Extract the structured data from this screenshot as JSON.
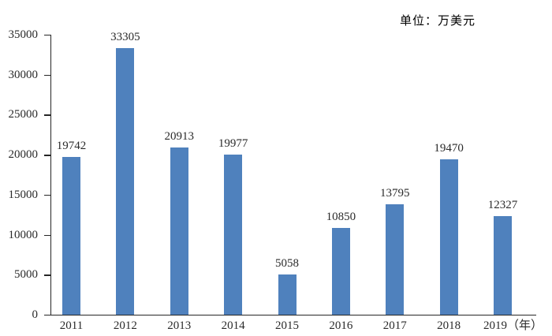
{
  "chart_data": {
    "type": "bar",
    "title": "",
    "unit_label": "单位：万美元",
    "categories": [
      "2011",
      "2012",
      "2013",
      "2014",
      "2015",
      "2016",
      "2017",
      "2018",
      "2019"
    ],
    "x_axis_suffix": "（年）",
    "values": [
      19742,
      33305,
      20913,
      19977,
      5058,
      10850,
      13795,
      19470,
      12327
    ],
    "yticks": [
      0,
      5000,
      10000,
      15000,
      20000,
      25000,
      30000,
      35000
    ],
    "ylim": [
      0,
      35000
    ],
    "grid": false,
    "legend": "none",
    "data_labels_shown": true,
    "bar_color": "#4f81bd",
    "axis_color": "#262626",
    "text_color": "#2a2a2a",
    "background": "#ffffff"
  }
}
